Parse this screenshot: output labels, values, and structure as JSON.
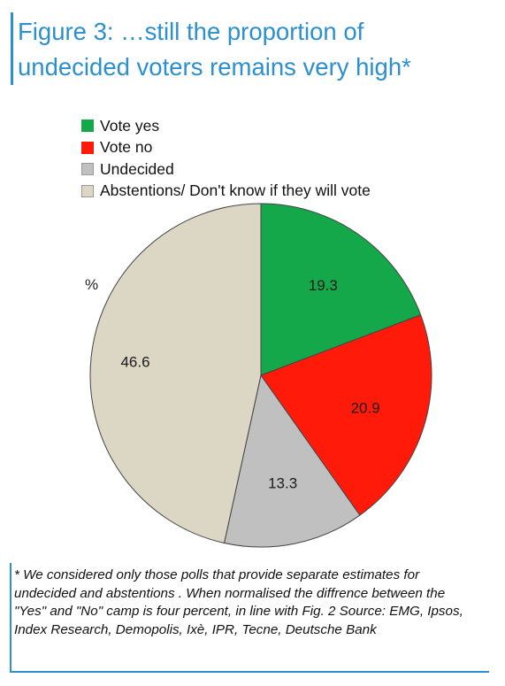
{
  "title_line1": "Figure 3: …still the proportion of",
  "title_line2": "undecided voters remains very high*",
  "unit_label": "%",
  "chart_data": {
    "type": "pie",
    "slices": [
      {
        "name": "Vote yes",
        "value": 19.3,
        "color": "#14a84a"
      },
      {
        "name": "Vote no",
        "value": 20.9,
        "color": "#ff1a0a"
      },
      {
        "name": "Undecided",
        "value": 13.3,
        "color": "#c0c0c0"
      },
      {
        "name": "Abstentions/ Don't know if they will vote",
        "value": 46.6,
        "color": "#dcd6c4"
      }
    ],
    "legend_position": "top-left"
  },
  "footnote": "* We considered only those polls that provide separate estimates for undecided and abstentions . When normalised the diffrence between the \"Yes\" and \"No\" camp is four percent, in line with Fig. 2 Source: EMG, Ipsos, Index Research, Demopolis, Ixè, IPR, Tecne, Deutsche Bank"
}
